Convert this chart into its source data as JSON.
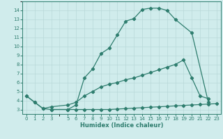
{
  "xlabel": "Humidex (Indice chaleur)",
  "xlim": [
    -0.5,
    23.5
  ],
  "ylim": [
    2.5,
    15.0
  ],
  "yticks": [
    3,
    4,
    5,
    6,
    7,
    8,
    9,
    10,
    11,
    12,
    13,
    14
  ],
  "xticks": [
    0,
    1,
    2,
    3,
    5,
    6,
    7,
    8,
    9,
    10,
    11,
    12,
    13,
    14,
    15,
    16,
    17,
    18,
    19,
    20,
    21,
    22,
    23
  ],
  "line_color": "#2e7d6e",
  "bg_color": "#d0ecec",
  "grid_color": "#b8d8d8",
  "curve1_x": [
    0,
    1,
    2,
    3,
    5,
    6,
    7,
    8,
    9,
    10,
    11,
    12,
    13,
    14,
    15,
    16,
    17,
    18,
    20,
    22
  ],
  "curve1_y": [
    4.5,
    3.8,
    3.1,
    3.0,
    3.0,
    3.5,
    6.5,
    7.5,
    9.2,
    9.8,
    11.3,
    12.8,
    13.1,
    14.1,
    14.25,
    14.25,
    14.0,
    13.0,
    11.5,
    3.8
  ],
  "curve2_x": [
    0,
    1,
    2,
    3,
    5,
    6,
    7,
    8,
    9,
    10,
    11,
    12,
    13,
    14,
    15,
    16,
    17,
    18,
    19,
    20,
    21,
    22
  ],
  "curve2_y": [
    4.5,
    3.8,
    3.1,
    3.3,
    3.5,
    3.8,
    4.5,
    5.0,
    5.5,
    5.8,
    6.0,
    6.3,
    6.5,
    6.8,
    7.1,
    7.4,
    7.7,
    8.0,
    8.5,
    6.5,
    4.5,
    4.2
  ],
  "curve3_x": [
    3,
    5,
    6,
    7,
    8,
    9,
    10,
    11,
    12,
    13,
    14,
    15,
    16,
    17,
    18,
    19,
    20,
    21,
    22,
    23
  ],
  "curve3_y": [
    3.0,
    3.0,
    3.0,
    3.0,
    3.0,
    3.0,
    3.0,
    3.05,
    3.1,
    3.15,
    3.2,
    3.25,
    3.3,
    3.35,
    3.4,
    3.45,
    3.5,
    3.55,
    3.6,
    3.65
  ]
}
